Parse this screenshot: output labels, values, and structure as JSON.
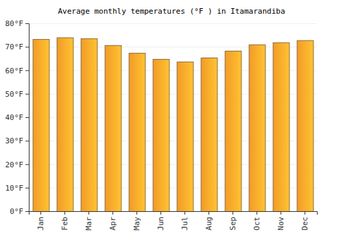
{
  "chart_data": {
    "type": "bar",
    "title": "Average monthly temperatures (°F ) in Itamarandiba",
    "categories": [
      "Jan",
      "Feb",
      "Mar",
      "Apr",
      "May",
      "Jun",
      "Jul",
      "Aug",
      "Sep",
      "Oct",
      "Nov",
      "Dec"
    ],
    "values": [
      73.3,
      74.0,
      73.6,
      70.7,
      67.4,
      64.8,
      63.7,
      65.4,
      68.3,
      71.0,
      71.9,
      72.8
    ],
    "color": "#ffa329",
    "ylim": [
      0,
      80
    ],
    "yticks": [
      {
        "value": 0,
        "label": "0°F"
      },
      {
        "value": 10,
        "label": "10°F"
      },
      {
        "value": 20,
        "label": "20°F"
      },
      {
        "value": 30,
        "label": "30°F"
      },
      {
        "value": 40,
        "label": "40°F"
      },
      {
        "value": 50,
        "label": "50°F"
      },
      {
        "value": 60,
        "label": "60°F"
      },
      {
        "value": 70,
        "label": "70°F"
      },
      {
        "value": 80,
        "label": "80°F"
      }
    ],
    "grid": true
  }
}
